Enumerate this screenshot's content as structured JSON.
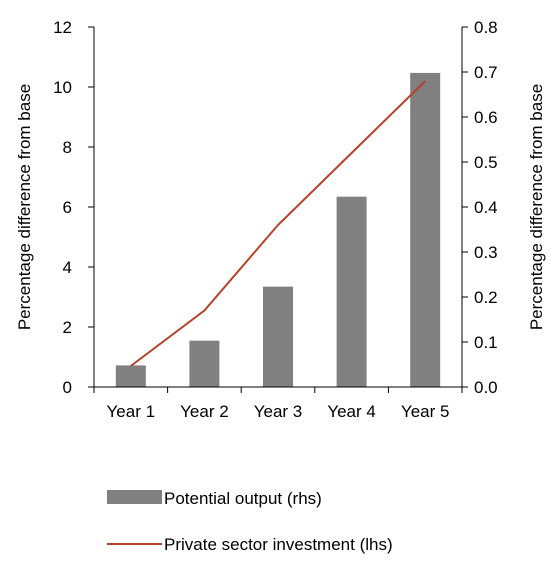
{
  "chart_data": {
    "type": "bar+line",
    "categories": [
      "Year 1",
      "Year 2",
      "Year 3",
      "Year 4",
      "Year 5"
    ],
    "series": [
      {
        "name": "Potential output (rhs)",
        "type": "bar",
        "axis": "right",
        "values": [
          0.048,
          0.103,
          0.223,
          0.423,
          0.698
        ],
        "color": "#808080"
      },
      {
        "name": "Private sector investment (lhs)",
        "type": "line",
        "axis": "left",
        "values": [
          0.7,
          2.55,
          5.4,
          7.8,
          10.2
        ],
        "color": "#b5412b"
      }
    ],
    "y_left": {
      "label": "Percentage difference from base",
      "ylim": [
        0,
        12
      ],
      "ticks": [
        "0",
        "2",
        "4",
        "6",
        "8",
        "10",
        "12"
      ]
    },
    "y_right": {
      "label": "Percentage difference from base",
      "ylim": [
        0,
        0.8
      ],
      "ticks": [
        "0.0",
        "0.1",
        "0.2",
        "0.3",
        "0.4",
        "0.5",
        "0.6",
        "0.7",
        "0.8"
      ]
    },
    "grid": false,
    "legend_position": "bottom"
  }
}
